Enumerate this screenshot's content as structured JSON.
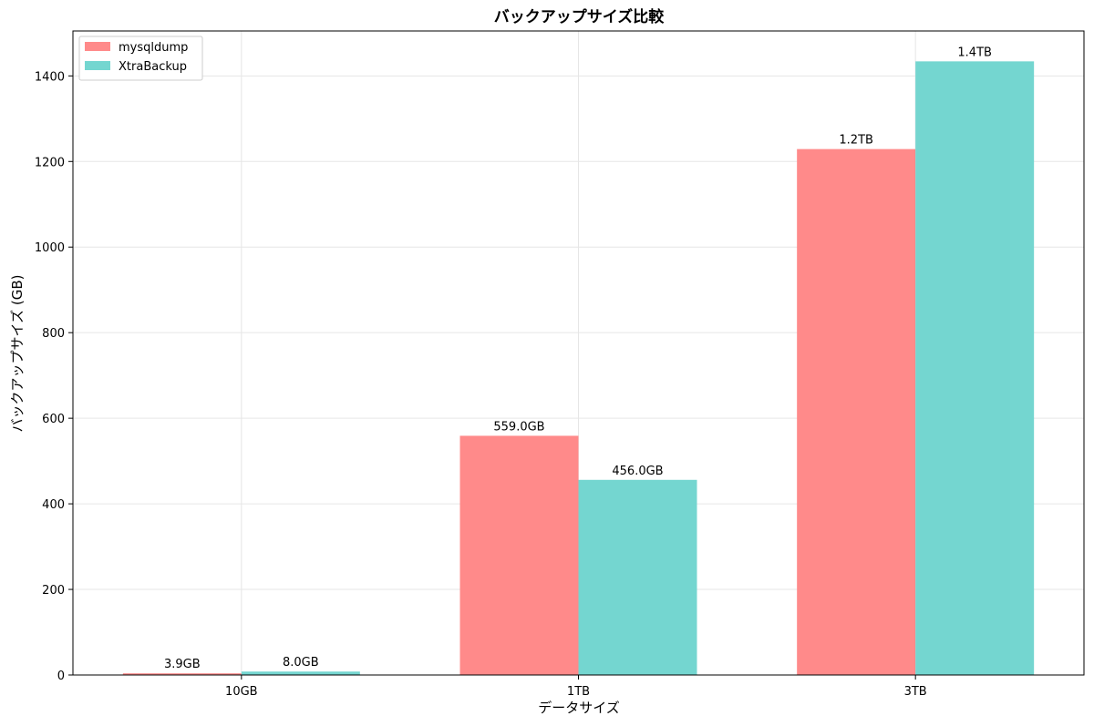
{
  "chart_data": {
    "type": "bar",
    "title": "バックアップサイズ比較",
    "xlabel": "データサイズ",
    "ylabel": "バックアップサイズ (GB)",
    "categories": [
      "10GB",
      "1TB",
      "3TB"
    ],
    "ylim": [
      0,
      1505
    ],
    "yticks": [
      0,
      200,
      400,
      600,
      800,
      1000,
      1200,
      1400
    ],
    "ytick_labels": [
      "0",
      "200",
      "400",
      "600",
      "800",
      "1000",
      "1200",
      "1400"
    ],
    "grid": true,
    "legend_position": "top-left",
    "series": [
      {
        "name": "mysqldump",
        "color": "#ff8a8a",
        "values": [
          3.9,
          559.0,
          1229
        ],
        "labels": [
          "3.9GB",
          "559.0GB",
          "1.2TB"
        ]
      },
      {
        "name": "XtraBackup",
        "color": "#74d6d0",
        "values": [
          8.0,
          456.0,
          1434
        ],
        "labels": [
          "8.0GB",
          "456.0GB",
          "1.4TB"
        ]
      }
    ]
  }
}
